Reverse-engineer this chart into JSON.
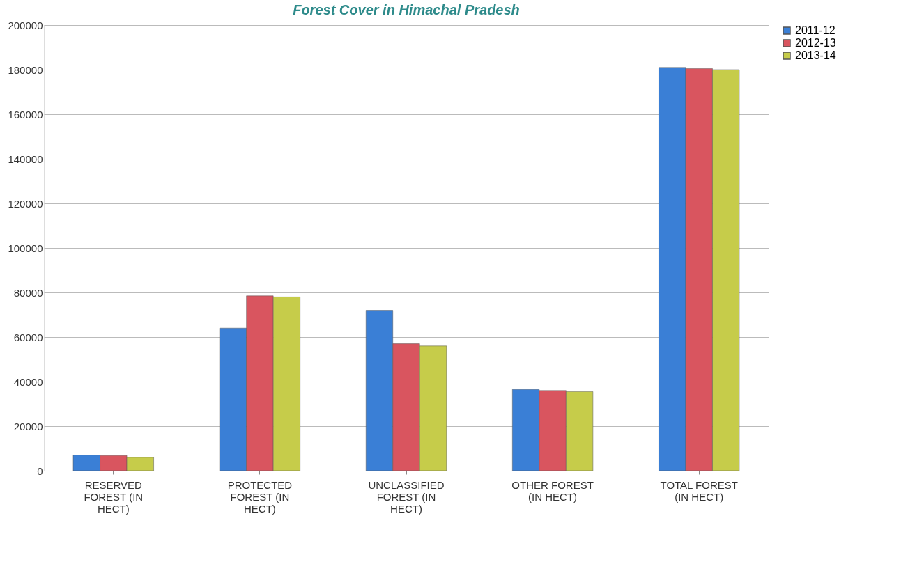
{
  "chart_data": {
    "type": "bar",
    "title": "Forest Cover in Himachal Pradesh",
    "categories": [
      "RESERVED FOREST (IN HECT)",
      "PROTECTED FOREST (IN HECT)",
      "UNCLASSIFIED FOREST (IN HECT)",
      "OTHER FOREST (IN HECT)",
      "TOTAL FOREST (IN HECT)"
    ],
    "series": [
      {
        "name": "2011-12",
        "color": "#3a7fd6",
        "values": [
          7000,
          64000,
          72000,
          36500,
          181000
        ]
      },
      {
        "name": "2012-13",
        "color": "#d9555f",
        "values": [
          6800,
          78500,
          57000,
          36000,
          180500
        ]
      },
      {
        "name": "2013-14",
        "color": "#c6cc4a",
        "values": [
          6000,
          78000,
          56000,
          35500,
          180000
        ]
      }
    ],
    "ylim": [
      0,
      200000
    ],
    "yticks": [
      0,
      20000,
      40000,
      60000,
      80000,
      100000,
      120000,
      140000,
      160000,
      180000,
      200000
    ],
    "grid": "y",
    "legend": "right"
  }
}
